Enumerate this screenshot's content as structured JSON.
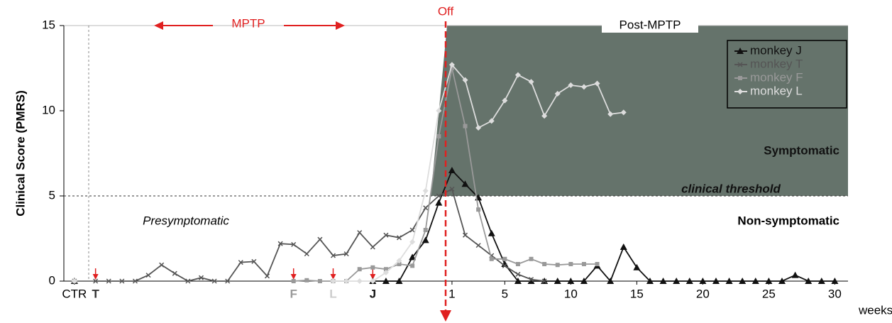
{
  "chart_data": {
    "type": "line",
    "y_label": "Clinical Score (PMRS)",
    "x_label": "weeks",
    "ylim": [
      0,
      15
    ],
    "yticks": [
      0,
      5,
      10,
      15
    ],
    "xlim": [
      -28.4,
      31
    ],
    "xticks": [
      {
        "value": -27.6,
        "label": "CTR"
      },
      1,
      5,
      10,
      15,
      20,
      25,
      30
    ],
    "threshold": 5,
    "threshold_label": "clinical threshold",
    "annotations": {
      "mptp": "MPTP",
      "off": "Off",
      "post": "Post-MPTP",
      "pre": "Presymptomatic",
      "sym": "Symptomatic",
      "nonsym": "Non-symptomatic"
    },
    "start_markers": [
      {
        "label": "T",
        "x": -26,
        "color": "#333333"
      },
      {
        "label": "F",
        "x": -11,
        "color": "#999999"
      },
      {
        "label": "L",
        "x": -8,
        "color": "#cccccc"
      },
      {
        "label": "J",
        "x": -5,
        "color": "#111111"
      }
    ],
    "legend": "top-right",
    "series": [
      {
        "name": "monkey J",
        "color": "#111111",
        "marker": "triangle",
        "x": [
          -27.6,
          -27,
          -5,
          -4,
          -3,
          -2,
          -1,
          0,
          1,
          2,
          3,
          4,
          5,
          6,
          7,
          8,
          9,
          10,
          11,
          12,
          13,
          14,
          15,
          16,
          17,
          18,
          19,
          20,
          21,
          22,
          23,
          24,
          25,
          26,
          27,
          28,
          29,
          30
        ],
        "values": [
          0,
          null,
          0,
          0,
          0,
          1.4,
          2.4,
          4.6,
          6.5,
          5.7,
          4.9,
          2.8,
          1.0,
          0,
          0,
          0,
          0,
          0,
          0,
          0.9,
          0,
          2.0,
          0.8,
          0,
          0,
          0,
          0,
          0,
          0,
          0,
          0,
          0,
          0,
          0,
          0.35,
          0,
          0,
          0
        ]
      },
      {
        "name": "monkey T",
        "color": "#555555",
        "marker": "x",
        "x": [
          -27.6,
          -27,
          -26,
          -25,
          -24,
          -23,
          -22,
          -21,
          -20,
          -19,
          -18,
          -17,
          -16,
          -15,
          -14,
          -13,
          -12,
          -11,
          -10,
          -9,
          -8,
          -7,
          -6,
          -5,
          -4,
          -3,
          -2,
          -1,
          0,
          1,
          2,
          3,
          4,
          5,
          6,
          7,
          8
        ],
        "values": [
          0,
          null,
          0,
          0,
          0,
          0,
          0.35,
          0.95,
          0.45,
          0,
          0.2,
          0,
          0,
          1.1,
          1.15,
          0.3,
          2.2,
          2.15,
          1.6,
          2.45,
          1.5,
          1.6,
          2.85,
          2.0,
          2.7,
          2.55,
          3.0,
          4.3,
          5.0,
          5.4,
          2.7,
          2.1,
          1.5,
          0.9,
          0.4,
          0.1,
          0
        ]
      },
      {
        "name": "monkey F",
        "color": "#999999",
        "marker": "square",
        "x": [
          -27.6,
          -27,
          -11,
          -10,
          -9,
          -8,
          -7,
          -6,
          -5,
          -4,
          -3,
          -2,
          -1,
          0,
          1,
          2,
          3,
          4,
          5,
          6,
          7,
          8,
          9,
          10,
          11,
          12
        ],
        "values": [
          0,
          null,
          0,
          0.05,
          0,
          0,
          0,
          0.7,
          0.8,
          0.7,
          1.0,
          0.9,
          3.0,
          8.5,
          12.5,
          9.1,
          4.2,
          1.3,
          1.3,
          1.0,
          1.3,
          1.0,
          0.95,
          1.0,
          1.0,
          1.0
        ]
      },
      {
        "name": "monkey L",
        "color": "#dddddd",
        "marker": "diamond",
        "x": [
          -27.6,
          -27,
          -8,
          -7,
          -6,
          -5,
          -4,
          -3,
          -2,
          -1,
          0,
          1,
          2,
          3,
          4,
          5,
          6,
          7,
          8,
          9,
          10,
          11,
          12,
          13,
          14
        ],
        "values": [
          0,
          null,
          0,
          0,
          0,
          0,
          0.5,
          1.2,
          2.3,
          5.3,
          10,
          12.7,
          11.8,
          9.0,
          9.4,
          10.6,
          12.1,
          11.7,
          9.7,
          11.0,
          11.5,
          11.4,
          11.6,
          9.8,
          9.9
        ]
      }
    ]
  }
}
